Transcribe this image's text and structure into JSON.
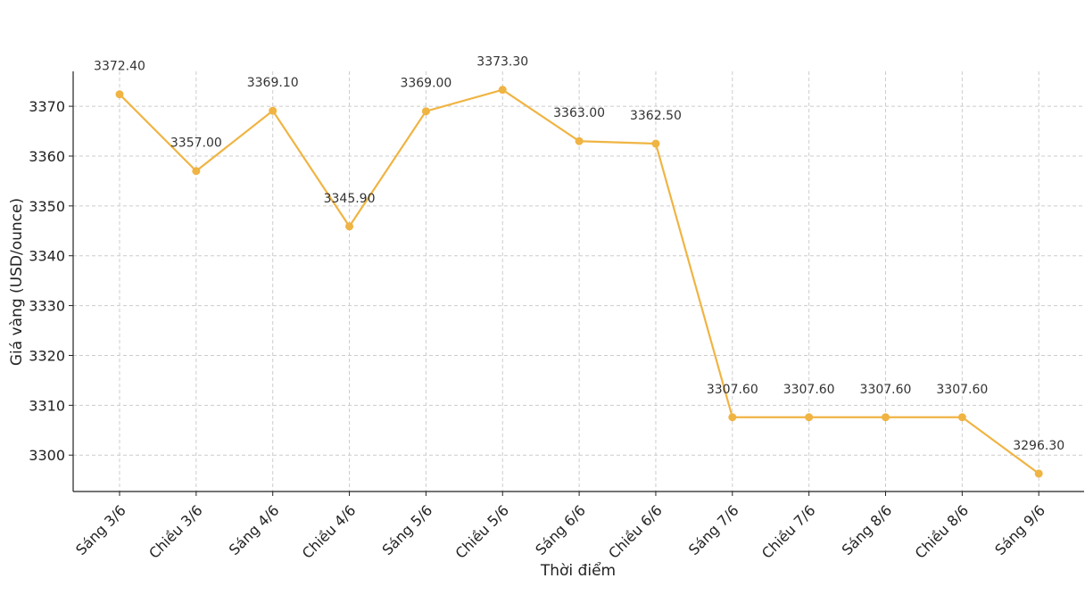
{
  "chart_data": {
    "type": "line",
    "title": "",
    "xlabel": "Thời điểm",
    "ylabel": "Giá vàng (USD/ounce)",
    "categories": [
      "Sáng 3/6",
      "Chiều 3/6",
      "Sáng 4/6",
      "Chiều 4/6",
      "Sáng 5/6",
      "Chiều 5/6",
      "Sáng 6/6",
      "Chiều 6/6",
      "Sáng 7/6",
      "Chiều 7/6",
      "Sáng 8/6",
      "Chiều 8/6",
      "Sáng 9/6"
    ],
    "series": [
      {
        "values": [
          3372.4,
          3357.0,
          3369.1,
          3345.9,
          3369.0,
          3373.3,
          3363.0,
          3362.5,
          3307.6,
          3307.6,
          3307.6,
          3307.6,
          3296.3
        ],
        "labels": [
          "3372.40",
          "3357.00",
          "3369.10",
          "3345.90",
          "3369.00",
          "3373.30",
          "3363.00",
          "3362.50",
          "3307.60",
          "3307.60",
          "3307.60",
          "3307.60",
          "3296.30"
        ],
        "color": "#F0B443"
      }
    ],
    "ylim": [
      3292.7,
      3377.0
    ],
    "yticks": [
      3300,
      3310,
      3320,
      3330,
      3340,
      3350,
      3360,
      3370
    ],
    "grid": true,
    "legend": "none"
  }
}
